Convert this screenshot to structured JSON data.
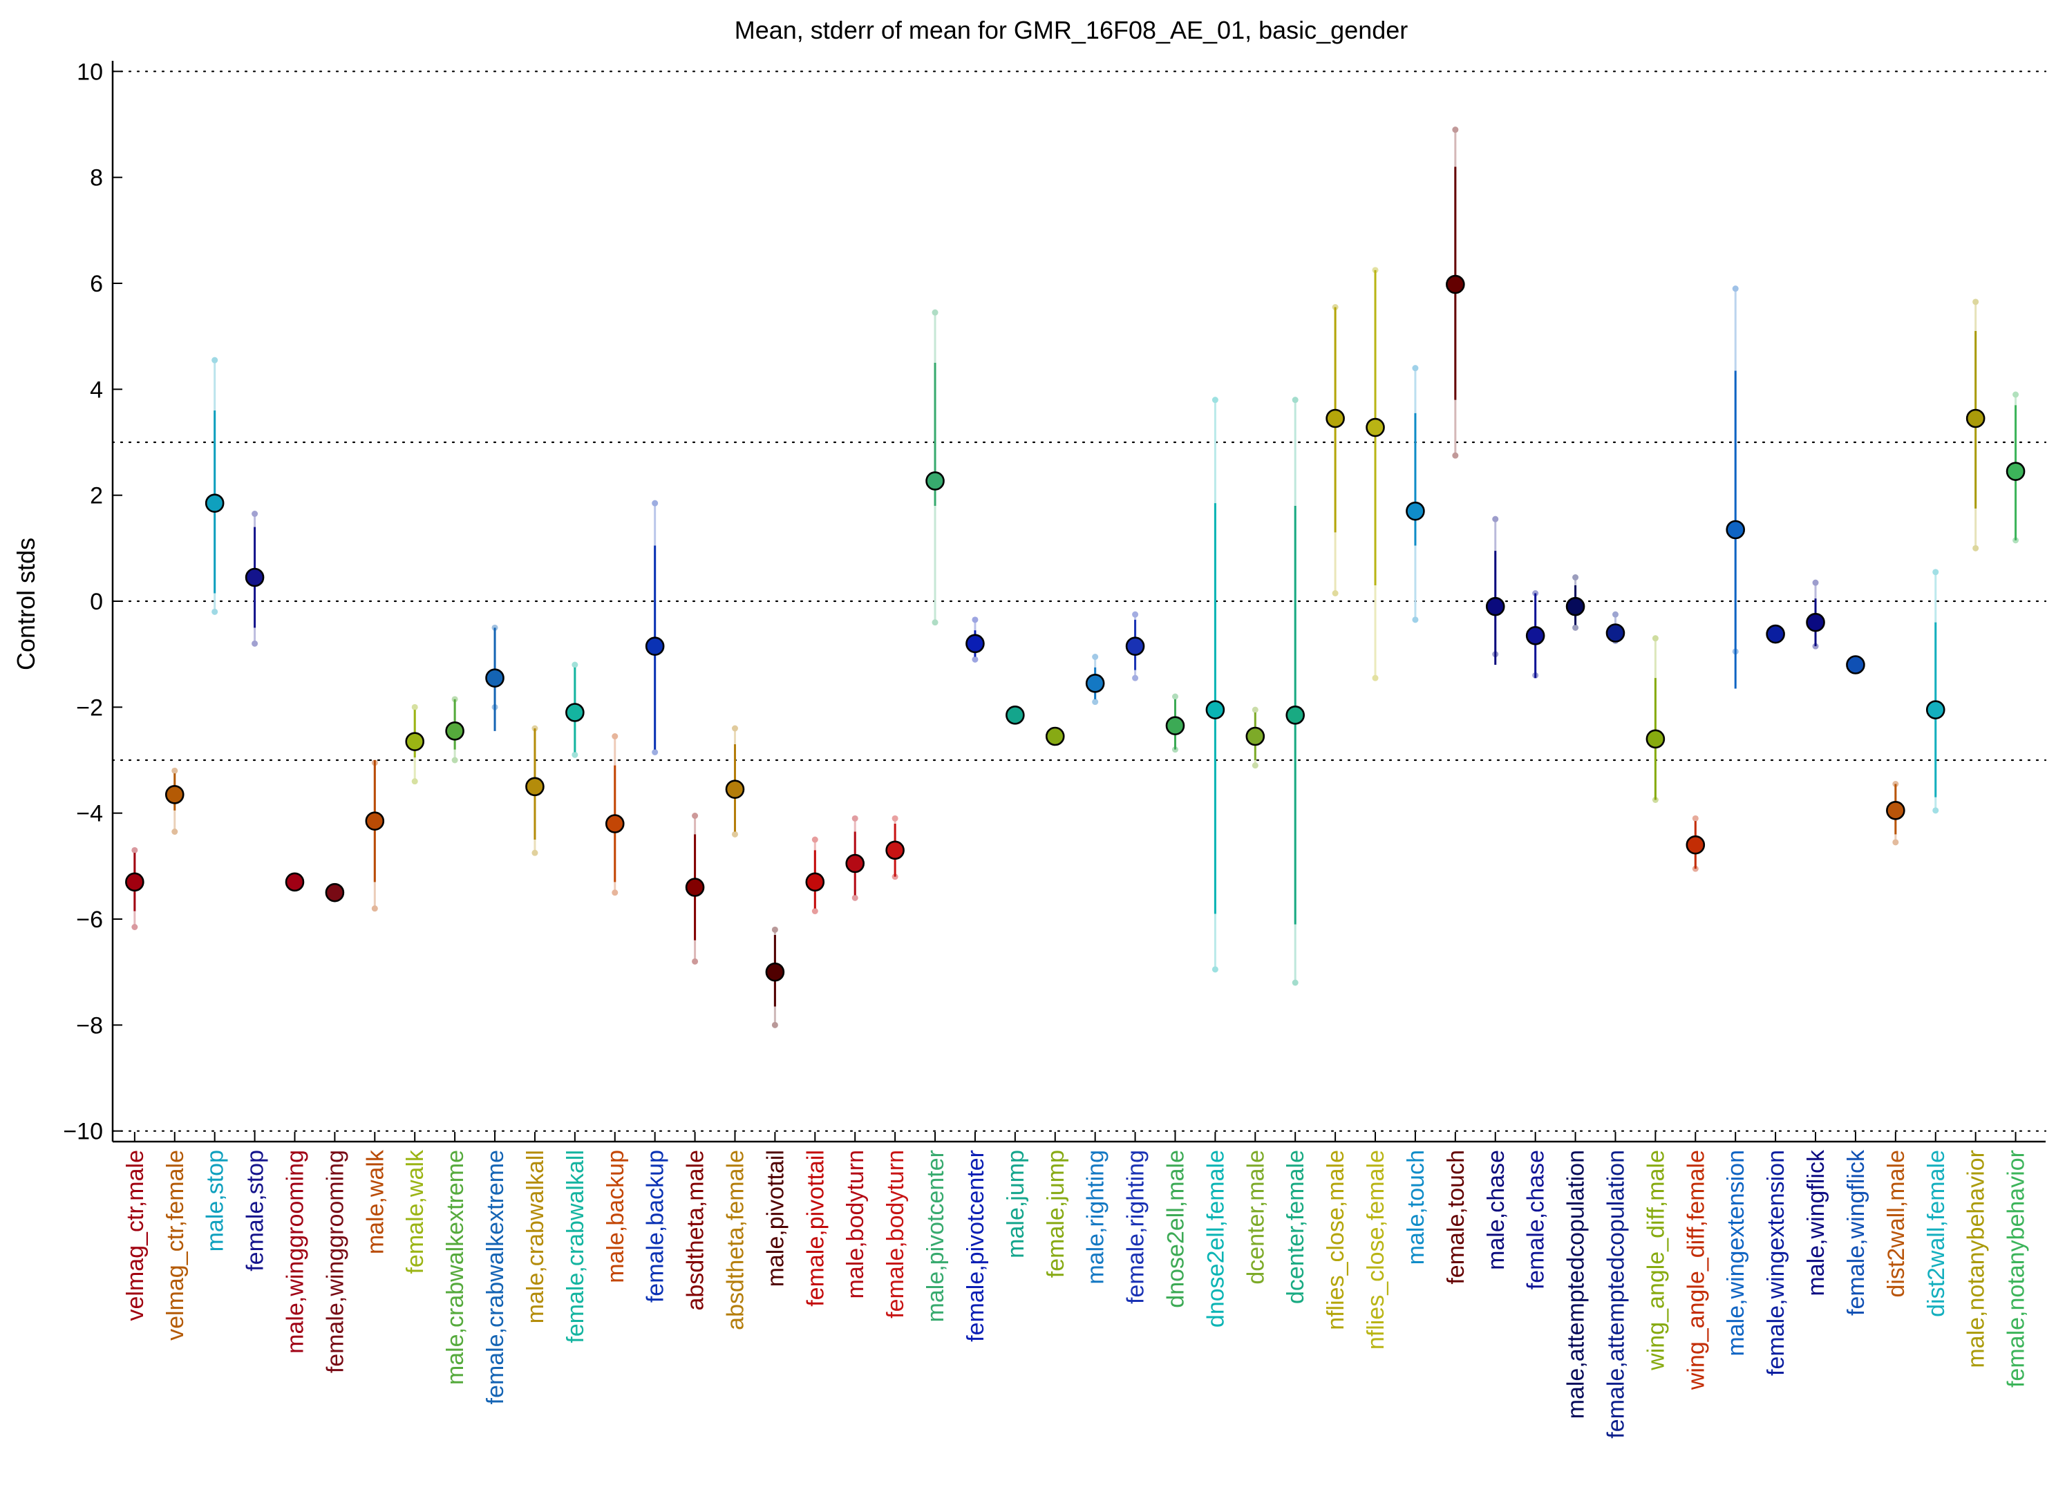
{
  "chart_data": {
    "type": "scatter",
    "title": "Mean, stderr of mean for GMR_16F08_AE_01, basic_gender",
    "xlabel": "",
    "ylabel": "Control stds",
    "ylim": [
      -10.2,
      10.2
    ],
    "yticks": [
      -10,
      -8,
      -6,
      -4,
      -2,
      0,
      2,
      4,
      6,
      8,
      10
    ],
    "grid_y": [
      -10,
      -3,
      0,
      3,
      10
    ],
    "categories": [
      "velmag_ctr,male",
      "velmag_ctr,female",
      "male,stop",
      "female,stop",
      "male,winggrooming",
      "female,winggrooming",
      "male,walk",
      "female,walk",
      "male,crabwalkextreme",
      "female,crabwalkextreme",
      "male,crabwalkall",
      "female,crabwalkall",
      "male,backup",
      "female,backup",
      "absdtheta,male",
      "absdtheta,female",
      "male,pivottail",
      "female,pivottail",
      "male,bodyturn",
      "female,bodyturn",
      "male,pivotcenter",
      "female,pivotcenter",
      "male,jump",
      "female,jump",
      "male,righting",
      "female,righting",
      "dnose2ell,male",
      "dnose2ell,female",
      "dcenter,male",
      "dcenter,female",
      "nflies_close,male",
      "nflies_close,female",
      "male,touch",
      "female,touch",
      "male,chase",
      "female,chase",
      "male,attemptedcopulation",
      "female,attemptedcopulation",
      "wing_angle_diff,male",
      "wing_angle_diff,female",
      "male,wingextension",
      "female,wingextension",
      "male,wingflick",
      "female,wingflick",
      "dist2wall,male",
      "dist2wall,female",
      "male,notanybehavior",
      "female,notanybehavior"
    ],
    "colors": [
      "#a0000f",
      "#b45a05",
      "#0fa0be",
      "#14148c",
      "#a00014",
      "#780a14",
      "#b94b05",
      "#9bb414",
      "#55aa3c",
      "#1464b4",
      "#b48c0a",
      "#14b4a0",
      "#c34605",
      "#0a32b4",
      "#820000",
      "#b47d0a",
      "#500000",
      "#c30a0a",
      "#b40a14",
      "#c81414",
      "#37aa6e",
      "#0a1eb4",
      "#14a58c",
      "#87aa14",
      "#1478c3",
      "#1932b4",
      "#3caa55",
      "#0ab4b4",
      "#7daa28",
      "#19aa82",
      "#b4a50a",
      "#b9b414",
      "#0f8cc8",
      "#640000",
      "#0a0a7d",
      "#0f1496",
      "#050a5a",
      "#0a1e8c",
      "#87aa0f",
      "#c32d05",
      "#0f64c3",
      "#0a1ea0",
      "#0a0a82",
      "#0f50b4",
      "#b9550a",
      "#14afbe",
      "#aa9b0a",
      "#3cb45a"
    ],
    "mean": [
      -5.3,
      -3.65,
      1.85,
      0.45,
      -5.3,
      -5.5,
      -4.15,
      -2.65,
      -2.45,
      -1.45,
      -3.5,
      -2.1,
      -4.2,
      -0.85,
      -5.4,
      -3.55,
      -7.0,
      -5.3,
      -4.95,
      -4.7,
      2.27,
      -0.8,
      -2.15,
      -2.55,
      -1.55,
      -0.85,
      -2.35,
      -2.05,
      -2.55,
      -2.15,
      3.45,
      3.28,
      1.7,
      5.98,
      -0.1,
      -0.65,
      -0.1,
      -0.6,
      -2.6,
      -4.6,
      1.35,
      -0.62,
      -0.4,
      -1.2,
      -3.95,
      -2.05,
      3.45,
      2.45
    ],
    "err_lo": [
      -5.85,
      -3.95,
      0.15,
      -0.5,
      -5.3,
      -5.5,
      -5.3,
      -2.95,
      -2.8,
      -2.45,
      -4.5,
      -2.85,
      -5.3,
      -2.8,
      -6.4,
      -4.35,
      -7.65,
      -5.8,
      -5.55,
      -5.2,
      1.8,
      -1.05,
      -2.15,
      -2.55,
      -1.85,
      -1.3,
      -2.8,
      -5.9,
      -3.0,
      -6.1,
      1.3,
      0.3,
      1.05,
      3.8,
      -1.2,
      -1.45,
      -0.45,
      -0.75,
      -3.75,
      -5.05,
      -1.65,
      -0.62,
      -0.85,
      -1.2,
      -4.4,
      -3.7,
      1.75,
      1.15
    ],
    "err_hi": [
      -4.75,
      -3.25,
      3.6,
      1.4,
      -5.3,
      -5.5,
      -3.0,
      -2.05,
      -1.85,
      -0.5,
      -2.4,
      -1.25,
      -3.1,
      1.05,
      -4.4,
      -2.7,
      -6.3,
      -4.7,
      -4.35,
      -4.2,
      4.5,
      -0.55,
      -2.15,
      -2.55,
      -1.25,
      -0.35,
      -1.85,
      1.85,
      -2.1,
      1.8,
      5.55,
      6.25,
      3.55,
      8.2,
      0.95,
      0.15,
      0.3,
      -0.45,
      -1.45,
      -4.15,
      4.35,
      -0.62,
      0.05,
      -1.2,
      -3.45,
      -0.4,
      5.1,
      3.7
    ],
    "range_lo": [
      -6.15,
      -4.35,
      -0.2,
      -0.8,
      -5.3,
      -5.5,
      -5.8,
      -3.4,
      -3.0,
      -2.0,
      -4.75,
      -2.9,
      -5.5,
      -2.85,
      -6.8,
      -4.4,
      -8.0,
      -5.85,
      -5.6,
      -5.2,
      -0.4,
      -1.1,
      -2.15,
      -2.55,
      -1.9,
      -1.45,
      -2.8,
      -6.95,
      -3.1,
      -7.2,
      0.15,
      -1.45,
      -0.35,
      2.75,
      -1.0,
      -1.4,
      -0.5,
      -0.75,
      -3.75,
      -5.05,
      -0.95,
      -0.62,
      -0.85,
      -1.2,
      -4.55,
      -3.95,
      1.0,
      1.15
    ],
    "range_hi": [
      -4.7,
      -3.2,
      4.55,
      1.65,
      -5.3,
      -5.5,
      -3.05,
      -2.0,
      -1.85,
      -0.5,
      -2.4,
      -1.2,
      -2.55,
      1.85,
      -4.05,
      -2.4,
      -6.2,
      -4.5,
      -4.1,
      -4.1,
      5.45,
      -0.35,
      -2.15,
      -2.55,
      -1.05,
      -0.25,
      -1.8,
      3.8,
      -2.05,
      3.8,
      5.55,
      6.25,
      4.4,
      8.9,
      1.55,
      0.15,
      0.45,
      -0.25,
      -0.7,
      -4.1,
      5.9,
      -0.62,
      0.35,
      -1.2,
      -3.45,
      0.55,
      5.65,
      3.9
    ]
  }
}
